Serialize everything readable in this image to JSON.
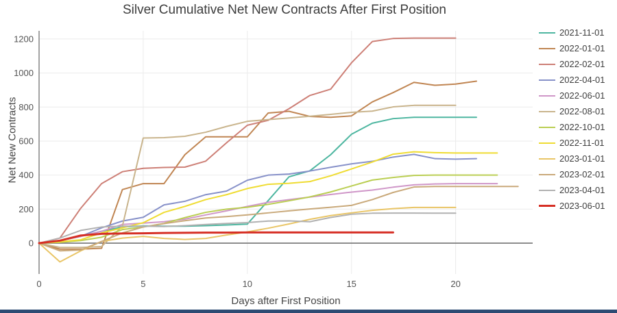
{
  "title": "Silver Cumulative Net New Contracts After First Position",
  "x_axis": {
    "label": "Days after First Position",
    "ticks": [
      0,
      5,
      10,
      15,
      20
    ]
  },
  "y_axis": {
    "label": "Net New Contracts",
    "ticks": [
      0,
      200,
      400,
      600,
      800,
      1000,
      1200
    ]
  },
  "footer_bar_color": "#2d4b73",
  "grid_color": "#ebebeb",
  "axis_line_color": "#7b7b7b",
  "chart_data": {
    "type": "line",
    "title": "Silver Cumulative Net New Contracts After First Position",
    "xlabel": "Days after First Position",
    "ylabel": "Net New Contracts",
    "x_unit": "days, step 1 starting at 0",
    "xlim": [
      0,
      23.7
    ],
    "ylim": [
      -181,
      1248
    ],
    "grid": true,
    "legend_position": "right",
    "series": [
      {
        "name": "2021-11-01",
        "color": "#4db6a0",
        "width": 2,
        "values": [
          0,
          15,
          40,
          70,
          95,
          102,
          100,
          100,
          103,
          107,
          112,
          250,
          390,
          425,
          520,
          640,
          705,
          732,
          740,
          740,
          740,
          740
        ]
      },
      {
        "name": "2022-01-01",
        "color": "#c08552",
        "width": 2,
        "values": [
          0,
          -35,
          -35,
          -30,
          315,
          350,
          350,
          520,
          625,
          625,
          625,
          765,
          775,
          745,
          740,
          748,
          830,
          885,
          945,
          928,
          935,
          952
        ]
      },
      {
        "name": "2022-02-01",
        "color": "#cd7f76",
        "width": 2,
        "values": [
          0,
          30,
          205,
          350,
          420,
          440,
          445,
          447,
          482,
          590,
          693,
          722,
          790,
          868,
          905,
          1060,
          1185,
          1203,
          1205,
          1205,
          1205
        ]
      },
      {
        "name": "2022-04-01",
        "color": "#8791c9",
        "width": 2,
        "values": [
          0,
          15,
          40,
          90,
          130,
          152,
          225,
          246,
          285,
          306,
          370,
          400,
          406,
          424,
          446,
          466,
          481,
          506,
          522,
          497,
          494,
          497
        ]
      },
      {
        "name": "2022-06-01",
        "color": "#cf96c8",
        "width": 2,
        "values": [
          0,
          15,
          40,
          70,
          110,
          118,
          126,
          141,
          166,
          190,
          216,
          240,
          256,
          271,
          286,
          300,
          312,
          329,
          343,
          348,
          350,
          350,
          350
        ]
      },
      {
        "name": "2022-08-01",
        "color": "#c9b48c",
        "width": 2,
        "values": [
          0,
          -25,
          -25,
          -20,
          100,
          618,
          620,
          628,
          652,
          686,
          716,
          726,
          736,
          746,
          757,
          769,
          776,
          801,
          810,
          810,
          810
        ]
      },
      {
        "name": "2022-10-01",
        "color": "#bace52",
        "width": 2,
        "values": [
          0,
          5,
          15,
          35,
          80,
          95,
          116,
          150,
          181,
          200,
          211,
          228,
          249,
          272,
          301,
          336,
          371,
          386,
          398,
          400,
          400,
          400,
          400
        ]
      },
      {
        "name": "2022-11-01",
        "color": "#efdc32",
        "width": 2,
        "values": [
          0,
          8,
          20,
          60,
          90,
          120,
          181,
          216,
          256,
          285,
          321,
          346,
          352,
          362,
          396,
          436,
          477,
          523,
          537,
          532,
          530,
          530,
          530
        ]
      },
      {
        "name": "2023-01-01",
        "color": "#e9c566",
        "width": 2,
        "values": [
          0,
          -110,
          -45,
          10,
          30,
          40,
          28,
          22,
          28,
          48,
          66,
          88,
          113,
          140,
          162,
          178,
          193,
          203,
          210,
          210,
          210
        ]
      },
      {
        "name": "2023-02-01",
        "color": "#c9a97a",
        "width": 2,
        "values": [
          0,
          -45,
          -40,
          10,
          60,
          95,
          115,
          132,
          148,
          156,
          166,
          178,
          190,
          201,
          211,
          222,
          256,
          298,
          330,
          333,
          333,
          333,
          333,
          333
        ]
      },
      {
        "name": "2023-04-01",
        "color": "#b1b1b1",
        "width": 2,
        "values": [
          0,
          30,
          75,
          95,
          100,
          100,
          98,
          103,
          110,
          116,
          121,
          130,
          131,
          126,
          151,
          170,
          176,
          177,
          177,
          176,
          176
        ]
      },
      {
        "name": "2023-06-01",
        "color": "#d62f25",
        "width": 3,
        "values": [
          0,
          15,
          45,
          55,
          57,
          58,
          60,
          61,
          62,
          62,
          63,
          63,
          63,
          63,
          63,
          63,
          63,
          63
        ]
      }
    ]
  }
}
